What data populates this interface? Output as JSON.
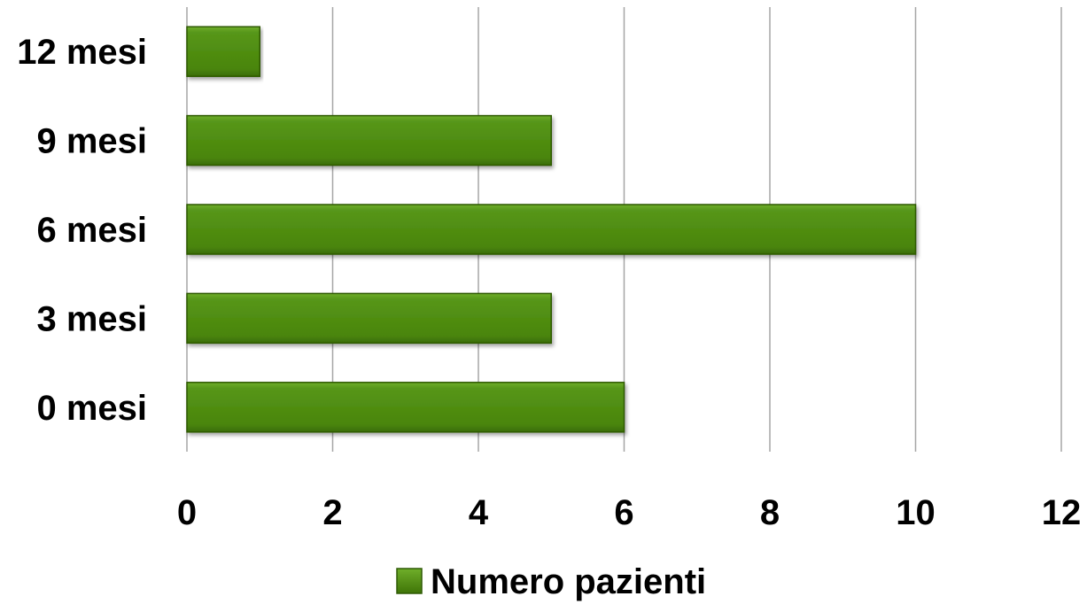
{
  "chart_data": {
    "type": "bar",
    "orientation": "horizontal",
    "categories": [
      "0 mesi",
      "3 mesi",
      "6 mesi",
      "9 mesi",
      "12 mesi"
    ],
    "series": [
      {
        "name": "Numero pazienti",
        "values": [
          6,
          5,
          10,
          5,
          1
        ],
        "color": "#4e8a0a"
      }
    ],
    "xlim": [
      0,
      12
    ],
    "xticks": [
      "0",
      "2",
      "4",
      "6",
      "8",
      "10",
      "12"
    ],
    "grid": "vertical",
    "legend": "bottom"
  }
}
